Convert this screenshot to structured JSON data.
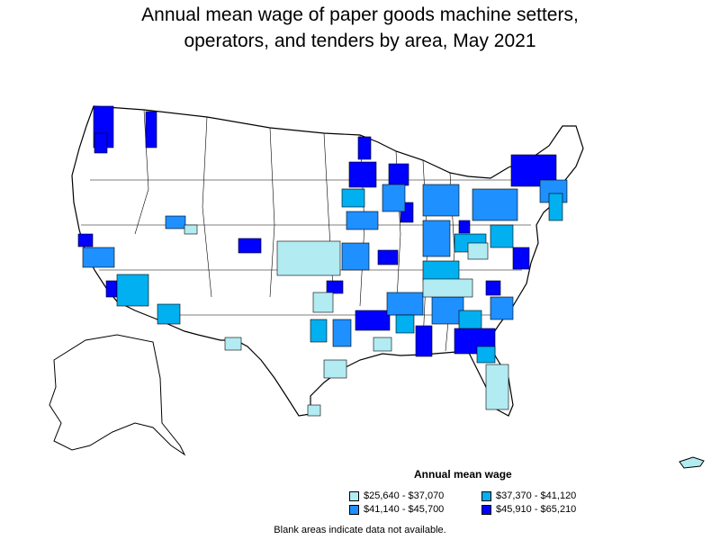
{
  "title_line1": "Annual mean wage of paper goods machine setters,",
  "title_line2": "operators, and tenders by area, May 2021",
  "legend": {
    "title": "Annual mean wage",
    "items": [
      {
        "label": "$25,640 - $37,070",
        "color": "#b2ebf2"
      },
      {
        "label": "$37,370 - $41,120",
        "color": "#00b0f0"
      },
      {
        "label": "$41,140 - $45,700",
        "color": "#1e90ff"
      },
      {
        "label": "$45,910 - $65,210",
        "color": "#0000ff"
      }
    ]
  },
  "note": "Blank areas indicate data not available."
}
